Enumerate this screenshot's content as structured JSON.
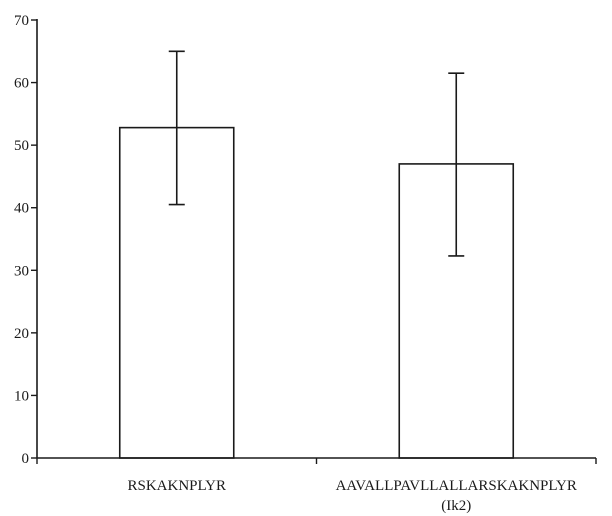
{
  "chart_data": {
    "type": "bar",
    "title": "",
    "xlabel": "",
    "ylabel": "",
    "ylim": [
      0,
      70
    ],
    "yticks": [
      0,
      10,
      20,
      30,
      40,
      50,
      60,
      70
    ],
    "ytick_labels": [
      "0",
      "10",
      "20",
      "30",
      "40",
      "50",
      "60",
      "70"
    ],
    "categories": [
      [
        "RSKAKNPLYR"
      ],
      [
        "AAVALLPAVLLALLARSKAKNPLYR",
        "(Ik2)"
      ]
    ],
    "values": [
      52.8,
      47.0
    ],
    "error_high": [
      65.0,
      61.5
    ],
    "error_low": [
      40.5,
      32.3
    ],
    "grid": false,
    "legend": "none",
    "colors": {
      "bar_fill": "#ffffff",
      "stroke": "#1a1a1a"
    }
  }
}
